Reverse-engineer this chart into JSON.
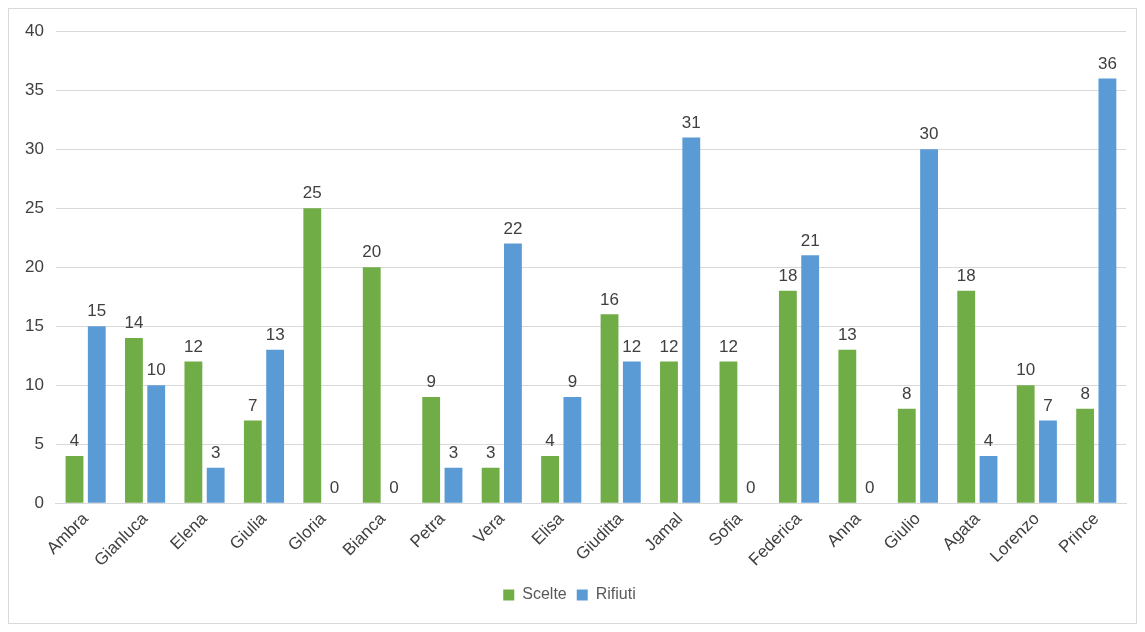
{
  "chart_data": {
    "type": "bar",
    "categories": [
      "Ambra",
      "Gianluca",
      "Elena",
      "Giulia",
      "Gloria",
      "Bianca",
      "Petra",
      "Vera",
      "Elisa",
      "Giuditta",
      "Jamal",
      "Sofia",
      "Federica",
      "Anna",
      "Giulio",
      "Agata",
      "Lorenzo",
      "Prince"
    ],
    "series": [
      {
        "name": "Scelte",
        "color": "#70ad47",
        "values": [
          4,
          14,
          12,
          7,
          25,
          20,
          9,
          3,
          4,
          16,
          12,
          12,
          18,
          13,
          8,
          18,
          10,
          8
        ]
      },
      {
        "name": "Rifiuti",
        "color": "#5b9bd5",
        "values": [
          15,
          10,
          3,
          13,
          0,
          0,
          3,
          22,
          9,
          12,
          31,
          0,
          21,
          0,
          30,
          4,
          7,
          36
        ]
      }
    ],
    "ylim": [
      0,
      40
    ],
    "yticks": [
      0,
      5,
      10,
      15,
      20,
      25,
      30,
      35,
      40
    ],
    "grid": "y",
    "legend": "bottom",
    "data_labels": true
  }
}
